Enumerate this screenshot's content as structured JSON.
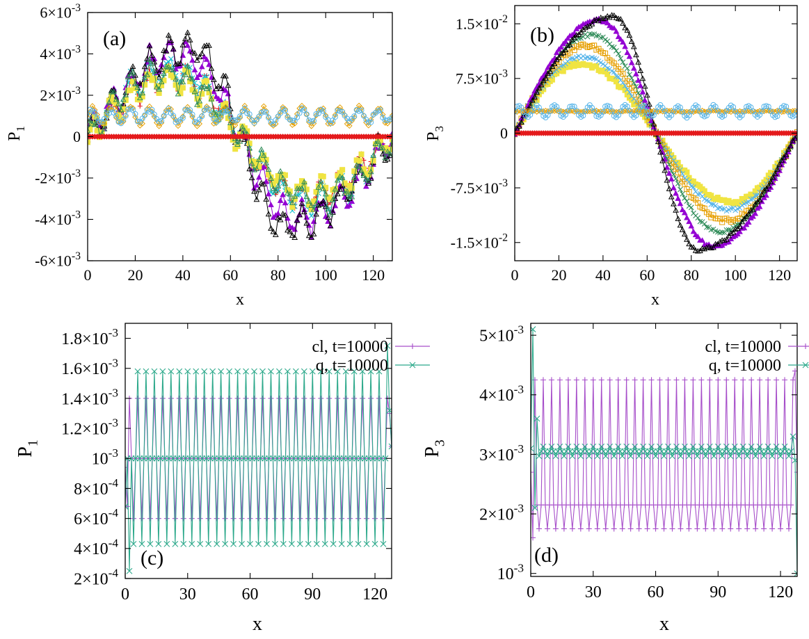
{
  "chart_data": [
    {
      "panel": "(a)",
      "type": "line",
      "xlabel": "x",
      "ylabel": "P",
      "ylabel_sub": "1",
      "xlim": [
        0,
        128
      ],
      "ylim": [
        -0.006,
        0.006
      ],
      "xticks": [
        0,
        20,
        40,
        60,
        80,
        100,
        120
      ],
      "yticks": [
        {
          "value": -0.006,
          "mant": "-6×10",
          "exp": "-3"
        },
        {
          "value": -0.004,
          "mant": "-4×10",
          "exp": "-3"
        },
        {
          "value": -0.002,
          "mant": "-2×10",
          "exp": "-3"
        },
        {
          "value": 0,
          "mant": "0",
          "exp": ""
        },
        {
          "value": 0.002,
          "mant": "2×10",
          "exp": "-3"
        },
        {
          "value": 0.004,
          "mant": "4×10",
          "exp": "-3"
        },
        {
          "value": 0.006,
          "mant": "6×10",
          "exp": "-3"
        }
      ],
      "series": [
        {
          "shape": "sine",
          "amp": 0.0029,
          "ripple": 0.00055,
          "rper": 8,
          "peak": 0.59,
          "noise": 0.0003,
          "color": "#e41a1c",
          "marker": "plus",
          "offset": 0
        },
        {
          "shape": "sine",
          "amp": 0.0032,
          "ripple": 0.0006,
          "rper": 8,
          "peak": 0.55,
          "noise": 0.0003,
          "color": "#17becf",
          "marker": "cross",
          "offset": 0
        },
        {
          "shape": "sine",
          "amp": 0.004,
          "ripple": 0.0007,
          "rper": 8,
          "peak": 0.62,
          "noise": 0.0003,
          "color": "#9400d3",
          "marker": "tri",
          "offset": 0
        },
        {
          "shape": "sine",
          "amp": 0.0043,
          "ripple": 0.0007,
          "rper": 8,
          "peak": 0.7,
          "noise": 0.0003,
          "color": "#000000",
          "marker": "tri-open",
          "offset": 0
        },
        {
          "shape": "sine",
          "amp": 0.0027,
          "ripple": 0.0006,
          "rper": 8,
          "peak": 0.56,
          "noise": 0.0003,
          "color": "#f0e442",
          "marker": "square",
          "offset": 0
        },
        {
          "shape": "sine",
          "amp": 0.003,
          "ripple": 0.0006,
          "rper": 8,
          "peak": 0.5,
          "noise": 0.0003,
          "color": "#2e8b57",
          "marker": "tri-open",
          "offset": 0
        },
        {
          "shape": "flat",
          "amp": 0,
          "ripple": 0.0004,
          "rper": 8,
          "peak": 0.5,
          "noise": 0.0001,
          "color": "#e69f00",
          "marker": "diamond-open",
          "offset": 0.001
        },
        {
          "shape": "flat",
          "amp": 0,
          "ripple": 0.0003,
          "rper": 8,
          "peak": 0.5,
          "noise": 0.0001,
          "color": "#56b4e9",
          "marker": "circle-open",
          "offset": 0.001
        },
        {
          "shape": "zero",
          "amp": 0,
          "ripple": 0,
          "rper": 8,
          "peak": 0.5,
          "noise": 0,
          "color": "#e41a1c",
          "marker": "diamond",
          "offset": 0
        }
      ]
    },
    {
      "panel": "(b)",
      "type": "line",
      "xlabel": "x",
      "ylabel": "P",
      "ylabel_sub": "3",
      "xlim": [
        0,
        128
      ],
      "ylim": [
        -0.0175,
        0.0175
      ],
      "xticks": [
        0,
        20,
        40,
        60,
        80,
        100,
        120
      ],
      "yticks": [
        {
          "value": -0.015,
          "mant": "-1.5×10",
          "exp": "-2"
        },
        {
          "value": -0.0075,
          "mant": "-7.5×10",
          "exp": "-3"
        },
        {
          "value": 0,
          "mant": "0",
          "exp": ""
        },
        {
          "value": 0.0075,
          "mant": "7.5×10",
          "exp": "-3"
        },
        {
          "value": 0.015,
          "mant": "1.5×10",
          "exp": "-2"
        }
      ],
      "series": [
        {
          "shape": "sine",
          "amp": 0.0095,
          "ripple": 0,
          "rper": 8,
          "peak": 0.46,
          "noise": 0.0003,
          "color": "#f0e442",
          "marker": "square",
          "offset": 0
        },
        {
          "shape": "sine",
          "amp": 0.0105,
          "ripple": 0,
          "rper": 8,
          "peak": 0.48,
          "noise": 0.0002,
          "color": "#56b4e9",
          "marker": "cross",
          "offset": 0
        },
        {
          "shape": "sine",
          "amp": 0.012,
          "ripple": 0,
          "rper": 8,
          "peak": 0.5,
          "noise": 0.0003,
          "color": "#e69f00",
          "marker": "square-open",
          "offset": 0
        },
        {
          "shape": "sine",
          "amp": 0.0135,
          "ripple": 0,
          "rper": 8,
          "peak": 0.55,
          "noise": 0.0002,
          "color": "#2e8b57",
          "marker": "cross",
          "offset": 0
        },
        {
          "shape": "sine",
          "amp": 0.0155,
          "ripple": 0,
          "rper": 8,
          "peak": 0.6,
          "noise": 0.0002,
          "color": "#9400d3",
          "marker": "tri",
          "offset": 0
        },
        {
          "shape": "sine",
          "amp": 0.016,
          "ripple": 0,
          "rper": 8,
          "peak": 0.7,
          "noise": 0.0002,
          "color": "#000000",
          "marker": "tri-open",
          "offset": 0
        },
        {
          "shape": "flat",
          "amp": 0,
          "ripple": 0,
          "rper": 8,
          "peak": 0.5,
          "noise": 0.0001,
          "color": "#e69f00",
          "marker": "diamond-open",
          "offset": 0.003
        },
        {
          "shape": "flat",
          "amp": 0,
          "ripple": 0.0008,
          "rper": 8,
          "peak": 0.5,
          "noise": 0.0001,
          "color": "#56b4e9",
          "marker": "circle-open",
          "offset": 0.003
        },
        {
          "shape": "zero",
          "amp": 0,
          "ripple": 0,
          "rper": 8,
          "peak": 0.5,
          "noise": 0,
          "color": "#e41a1c",
          "marker": "diamond",
          "offset": 0
        }
      ]
    },
    {
      "panel": "(c)",
      "type": "line",
      "xlabel": "x",
      "ylabel": "P",
      "ylabel_sub": "1",
      "xlim": [
        0,
        128
      ],
      "ylim": [
        0.0002,
        0.0019
      ],
      "xticks": [
        0,
        30,
        60,
        90,
        120
      ],
      "yticks": [
        {
          "value": 0.0002,
          "mant": "2×10",
          "exp": "-4"
        },
        {
          "value": 0.0004,
          "mant": "4×10",
          "exp": "-4"
        },
        {
          "value": 0.0006,
          "mant": "6×10",
          "exp": "-4"
        },
        {
          "value": 0.0008,
          "mant": "8×10",
          "exp": "-4"
        },
        {
          "value": 0.001,
          "mant": "10",
          "exp": "-3"
        },
        {
          "value": 0.0012,
          "mant": "1.2×10",
          "exp": "-3"
        },
        {
          "value": 0.0014,
          "mant": "1.4×10",
          "exp": "-3"
        },
        {
          "value": 0.0016,
          "mant": "1.6×10",
          "exp": "-3"
        },
        {
          "value": 0.0018,
          "mant": "1.8×10",
          "exp": "-3"
        }
      ],
      "legend": [
        {
          "label": "cl, t=10000",
          "color": "#a64dc9",
          "marker": "plus"
        },
        {
          "label": "q, t=10000",
          "color": "#2ba88a",
          "marker": "cross"
        }
      ],
      "series": [
        {
          "name": "cl, t=10000",
          "pattern": [
            0.0006,
            0.001,
            0.0014,
            0.001
          ],
          "color": "#a64dc9",
          "marker": "plus",
          "edges": [
            [
              0,
              0.00094
            ],
            [
              1,
              0.00068
            ],
            [
              127,
              0.0013
            ],
            [
              128,
              0.00108
            ]
          ]
        },
        {
          "name": "q, t=10000",
          "pattern": [
            0.00043,
            0.001,
            0.00158,
            0.001
          ],
          "color": "#2ba88a",
          "marker": "cross",
          "edges": [
            [
              0,
              0.00068
            ],
            [
              2,
              0.00025
            ],
            [
              126,
              0.00175
            ],
            [
              127,
              0.00132
            ],
            [
              128,
              0.00108
            ]
          ]
        }
      ]
    },
    {
      "panel": "(d)",
      "type": "line",
      "xlabel": "x",
      "ylabel": "P",
      "ylabel_sub": "3",
      "xlim": [
        0,
        128
      ],
      "ylim": [
        0.00095,
        0.0052
      ],
      "xticks": [
        0,
        30,
        60,
        90,
        120
      ],
      "yticks": [
        {
          "value": 0.001,
          "mant": "10",
          "exp": "-3"
        },
        {
          "value": 0.002,
          "mant": "2×10",
          "exp": "-3"
        },
        {
          "value": 0.003,
          "mant": "3×10",
          "exp": "-3"
        },
        {
          "value": 0.004,
          "mant": "4×10",
          "exp": "-3"
        },
        {
          "value": 0.005,
          "mant": "5×10",
          "exp": "-3"
        }
      ],
      "legend": [
        {
          "label": "cl, t=10000",
          "color": "#a64dc9",
          "marker": "plus"
        },
        {
          "label": "q, t=10000",
          "color": "#2ba88a",
          "marker": "cross"
        }
      ],
      "series": [
        {
          "name": "cl, t=10000",
          "pattern": [
            0.00175,
            0.00215,
            0.00425,
            0.00215
          ],
          "color": "#a64dc9",
          "marker": "plus",
          "edges": [
            [
              0,
              0.0027
            ],
            [
              1,
              0.0016
            ],
            [
              127,
              0.0044
            ],
            [
              128,
              0.0027
            ]
          ]
        },
        {
          "name": "q, t=10000",
          "pattern": [
            0.00297,
            0.00305,
            0.00313,
            0.00305
          ],
          "color": "#2ba88a",
          "marker": "cross",
          "edges": [
            [
              0,
              0.0031
            ],
            [
              1,
              0.0051
            ],
            [
              2,
              0.0021
            ],
            [
              3,
              0.0036
            ],
            [
              126,
              0.0033
            ],
            [
              127,
              0.0029
            ],
            [
              128,
              0.001
            ]
          ]
        }
      ]
    }
  ]
}
